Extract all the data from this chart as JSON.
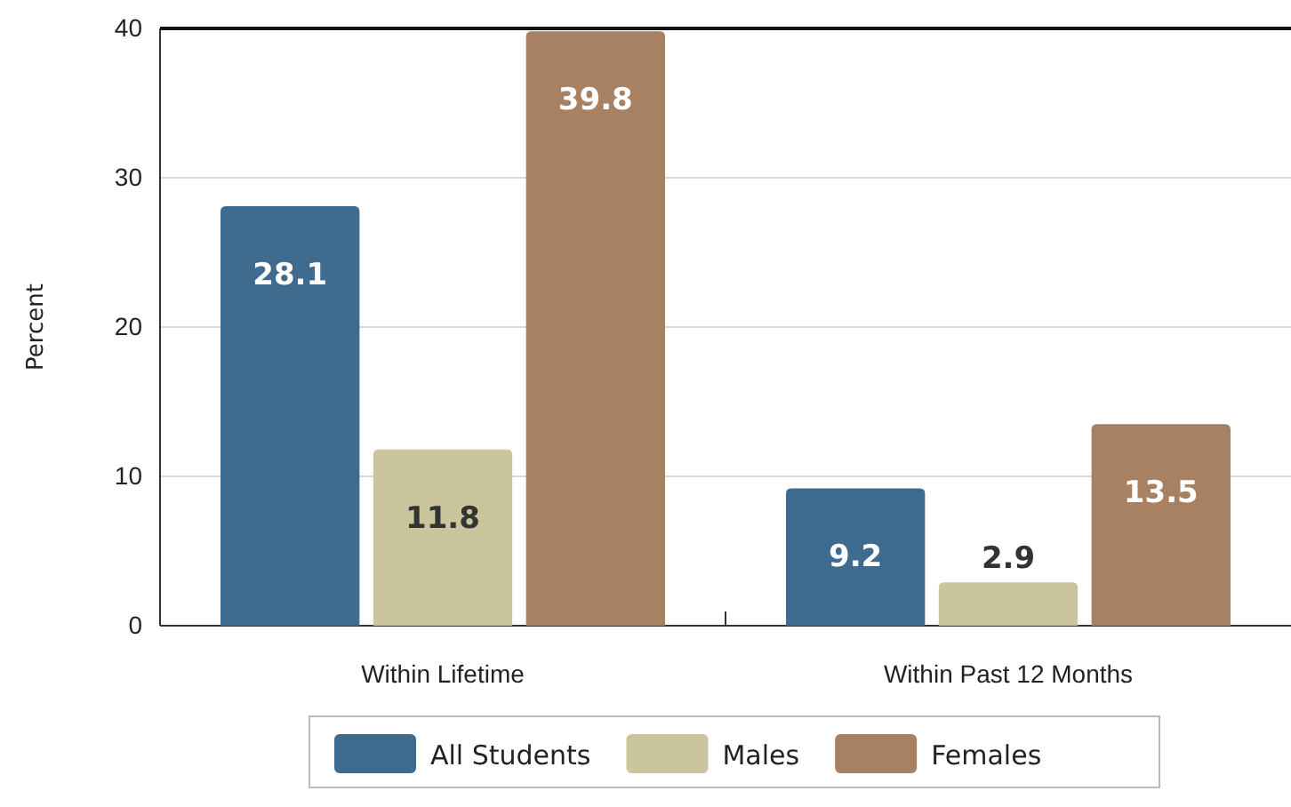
{
  "chart_data": {
    "type": "bar",
    "ylabel": "Percent",
    "categories": [
      "Within Lifetime",
      "Within Past 12 Months"
    ],
    "series": [
      {
        "name": "All Students",
        "color": "#3f6c8e",
        "values": [
          28.1,
          9.2
        ]
      },
      {
        "name": "Males",
        "color": "#cbc59d",
        "values": [
          11.8,
          2.9
        ]
      },
      {
        "name": "Females",
        "color": "#a88163",
        "values": [
          39.8,
          13.5
        ]
      }
    ],
    "ylim": [
      0,
      40
    ],
    "yticks": [
      0,
      10,
      20,
      30,
      40
    ],
    "grid": "y",
    "legend": "bottom",
    "data_labels": true
  }
}
